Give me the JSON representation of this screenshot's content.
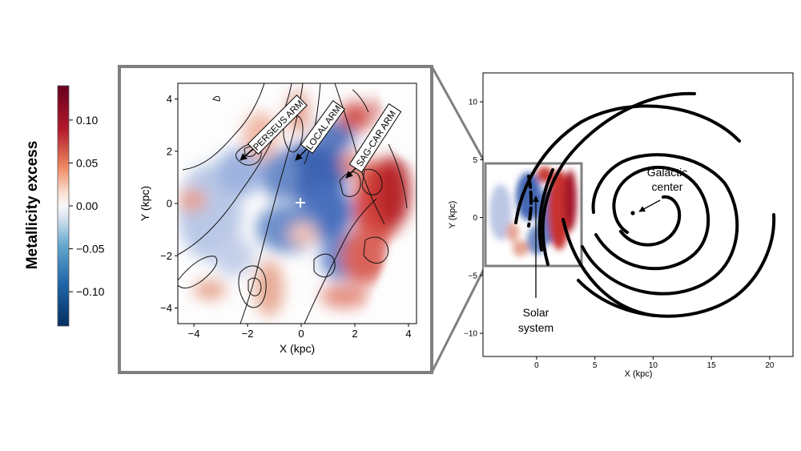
{
  "colorbar": {
    "label": "Metallicity excess",
    "min": -0.14,
    "max": 0.14,
    "ticks": [
      "0.10",
      "0.05",
      "0.00",
      "−0.05",
      "−0.10"
    ],
    "tick_values": [
      0.1,
      0.05,
      0.0,
      -0.05,
      -0.1
    ],
    "colors": {
      "high": "#67001f",
      "mid": "#f7f7f7",
      "low": "#053061"
    }
  },
  "chart_data": [
    {
      "type": "heatmap",
      "panel": "zoomed local map",
      "xlabel": "X (kpc)",
      "ylabel": "Y (kpc)",
      "xlim": [
        -4.6,
        4.3
      ],
      "ylim": [
        -4.6,
        4.6
      ],
      "xticks": [
        -4,
        -2,
        0,
        2,
        4
      ],
      "yticks": [
        4,
        2,
        0,
        -2,
        -4
      ],
      "xtick_labels": [
        "−4",
        "−2",
        "0",
        "2",
        "4"
      ],
      "ytick_labels": [
        "4",
        "2",
        "0",
        "−2",
        "−4"
      ],
      "grid": false,
      "annotations": [
        {
          "text": "PERSEUS ARM",
          "arrow_to": [
            -2.3,
            1.6
          ]
        },
        {
          "text": "LOCAL ARM",
          "arrow_to": [
            -0.2,
            1.7
          ]
        },
        {
          "text": "SAG-CAR ARM",
          "arrow_to": [
            1.7,
            0.9
          ]
        }
      ],
      "marker": {
        "label": "+",
        "x": 0,
        "y": 0
      }
    },
    {
      "type": "scatter",
      "panel": "Milky Way spiral arm overview",
      "xlabel": "X (kpc)",
      "ylabel": "Y (kpc)",
      "xlim": [
        -4.6,
        22
      ],
      "ylim": [
        -12,
        12.5
      ],
      "xticks": [
        0,
        5,
        10,
        15,
        20
      ],
      "yticks": [
        10,
        5,
        0,
        -5,
        -10
      ],
      "xtick_labels": [
        "0",
        "5",
        "10",
        "15",
        "20"
      ],
      "ytick_labels": [
        "10",
        "5",
        "0",
        "−5",
        "−10"
      ],
      "grid": false,
      "galactic_center": {
        "x": 8.2,
        "y": 0.3
      },
      "sun": {
        "x": 0,
        "y": 0
      },
      "annotations": [
        {
          "text_lines": [
            "Galactic",
            "center"
          ]
        },
        {
          "text_lines": [
            "Solar",
            "system"
          ]
        }
      ]
    }
  ]
}
